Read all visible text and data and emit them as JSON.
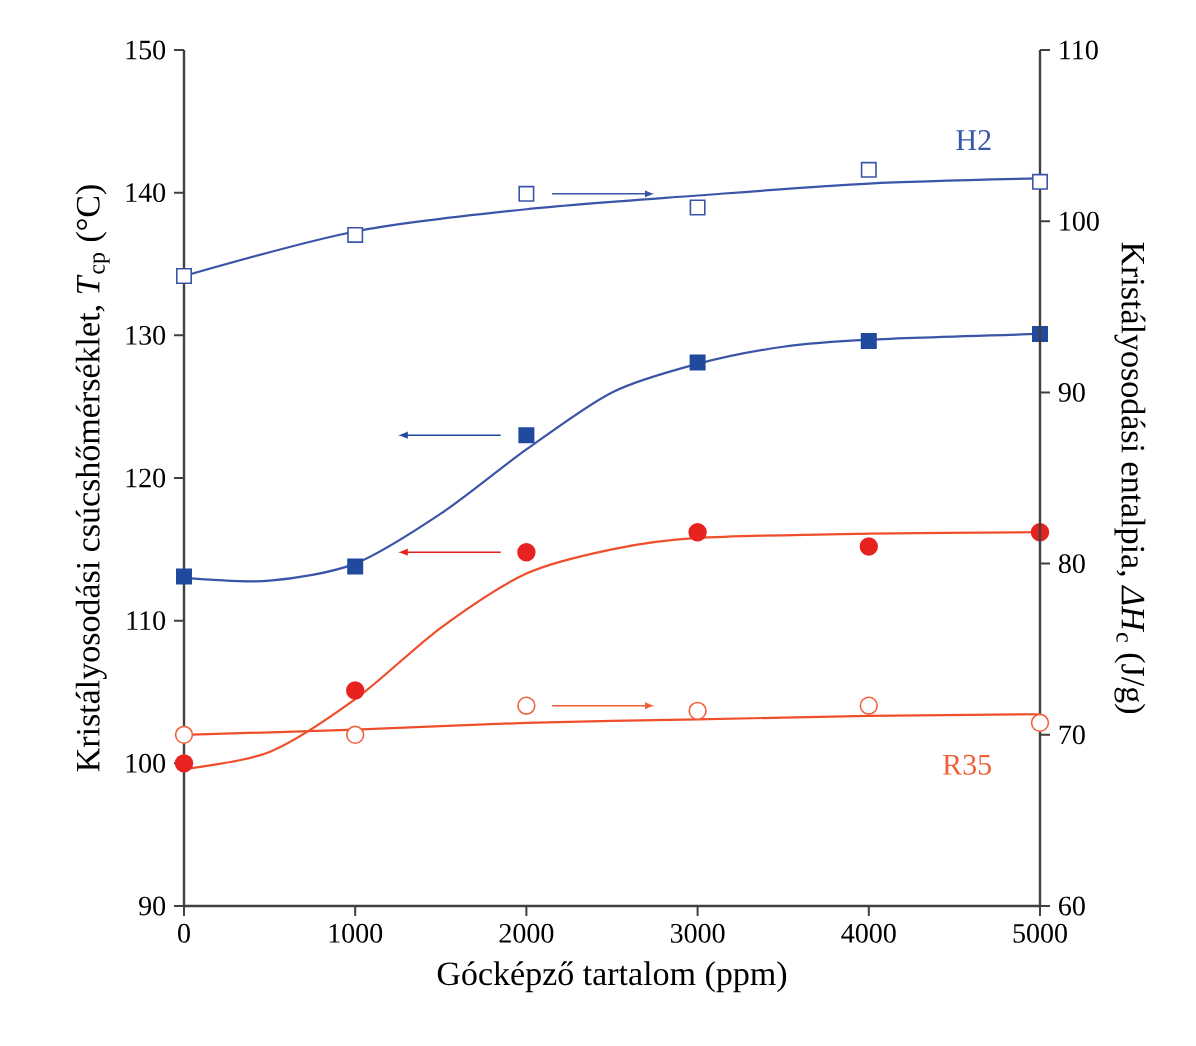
{
  "chart_data": {
    "type": "scatter",
    "xlabel": "Gócképző tartalom (ppm)",
    "ylabel": "Kristályosodási csúcshőmérséklet, *T*$_{cp}$ (°C)",
    "y2label": "Kristályosodási entalpia, *ΔH*$_{c}$ (J/g)",
    "xlim": [
      0,
      5000
    ],
    "xticks": [
      0,
      1000,
      2000,
      3000,
      4000,
      5000
    ],
    "ylim": [
      90,
      150
    ],
    "yticks": [
      90,
      100,
      110,
      120,
      130,
      140,
      150
    ],
    "y2lim": [
      60,
      110
    ],
    "y2ticks": [
      60,
      70,
      80,
      90,
      100,
      110
    ],
    "series": [
      {
        "type": "line",
        "color": "#3a55a8",
        "x": [
          0,
          500,
          1000,
          1500,
          2000,
          2500,
          3000,
          3500,
          4000,
          5000
        ],
        "values": [
          113,
          112.8,
          114,
          117.5,
          122,
          126,
          128,
          129.2,
          129.7,
          130.1
        ]
      },
      {
        "type": "line",
        "color": "#ef4e2b",
        "x": [
          0,
          500,
          1000,
          1500,
          2000,
          2500,
          3000,
          4000,
          5000
        ],
        "values": [
          99.6,
          100.8,
          104.5,
          109.5,
          113.3,
          115,
          115.8,
          116.1,
          116.2
        ]
      },
      {
        "type": "line",
        "axis": "y2",
        "color": "#3a55a8",
        "x": [
          0,
          1000,
          2000,
          3000,
          4000,
          5000
        ],
        "values": [
          96.8,
          99.4,
          100.7,
          101.5,
          102.2,
          102.5
        ]
      },
      {
        "type": "line",
        "axis": "y2",
        "color": "#ef4e2b",
        "x": [
          0,
          1000,
          2000,
          3000,
          4000,
          5000
        ],
        "values": [
          70.0,
          70.3,
          70.7,
          70.9,
          71.1,
          71.2
        ]
      },
      {
        "marker": "square",
        "color": "#1f4a9e",
        "x": [
          0,
          1000,
          2000,
          3000,
          4000,
          5000
        ],
        "values": [
          113.1,
          113.8,
          123,
          128.1,
          129.6,
          130.1
        ]
      },
      {
        "marker": "circle",
        "color": "#e8231f",
        "x": [
          0,
          1000,
          2000,
          3000,
          4000,
          5000
        ],
        "values": [
          100,
          105.1,
          114.8,
          116.2,
          115.2,
          116.2
        ]
      },
      {
        "axis": "y2",
        "name": "H2",
        "marker": "square",
        "color": "#3a55a8",
        "x": [
          0,
          1000,
          2000,
          3000,
          4000,
          5000
        ],
        "values": [
          96.8,
          99.2,
          101.6,
          100.8,
          103.0,
          102.3
        ]
      },
      {
        "axis": "y2",
        "name": "R35",
        "marker": "circle",
        "color": "#f0603a",
        "x": [
          0,
          1000,
          2000,
          3000,
          4000,
          5000
        ],
        "values": [
          70.0,
          70.0,
          71.7,
          71.4,
          71.7,
          70.7
        ]
      }
    ]
  }
}
